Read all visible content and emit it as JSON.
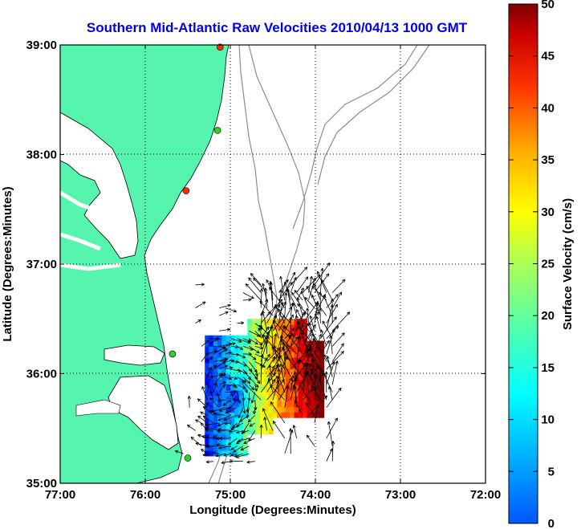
{
  "chart_data": {
    "type": "heatmap",
    "title": "Southern Mid-Atlantic Raw Velocities 2010/04/13 1000 GMT",
    "xlabel": "Longitude (Degrees:Minutes)",
    "ylabel": "Latitude (Degrees:Minutes)",
    "x_ticks": [
      "77:00",
      "76:00",
      "75:00",
      "74:00",
      "73:00",
      "72:00"
    ],
    "y_ticks": [
      "39:00",
      "38:00",
      "37:00",
      "36:00",
      "35:00"
    ],
    "xlim": [
      -77,
      -72
    ],
    "ylim": [
      35,
      39
    ],
    "grid": true,
    "colorbar": {
      "label": "Surface Velocity (cm/s)",
      "ticks": [
        "0",
        "5",
        "10",
        "15",
        "20",
        "25",
        "30",
        "35",
        "40",
        "45",
        "50"
      ],
      "range": [
        0,
        50
      ],
      "colormap": "jet"
    },
    "colors": {
      "title": "#0000ee",
      "land": "#55f5ad",
      "bathymetry": "#8c8c8c",
      "arrows": "#000000"
    },
    "stations": [
      {
        "lon": -75.12,
        "lat": 38.98,
        "color": "#ff2a00"
      },
      {
        "lon": -75.15,
        "lat": 38.22,
        "color": "#2fd02f"
      },
      {
        "lon": -75.52,
        "lat": 37.67,
        "color": "#ff2a00"
      },
      {
        "lon": -75.68,
        "lat": 36.18,
        "color": "#2fd02f"
      },
      {
        "lon": -75.5,
        "lat": 35.23,
        "color": "#2fd02f"
      }
    ]
  }
}
